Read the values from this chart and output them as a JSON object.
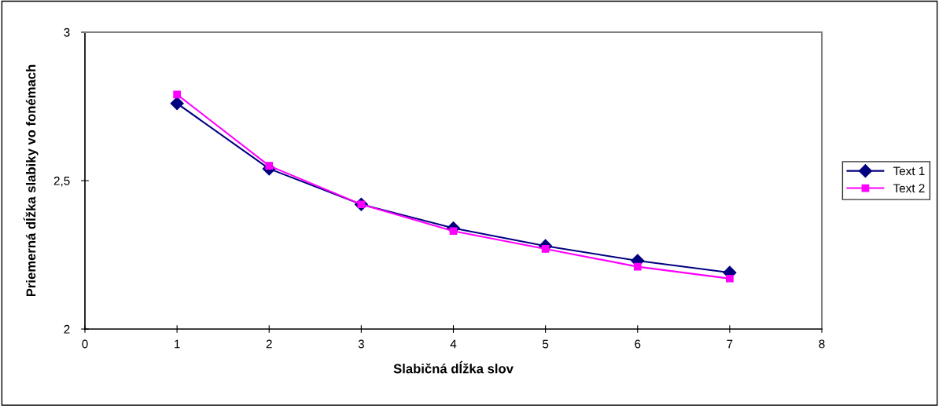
{
  "chart_data": {
    "type": "line",
    "xlabel": "Slabičná dĺžka slov",
    "ylabel": "Priemerná dĺžka slabiky vo fonémach",
    "x": [
      1,
      2,
      3,
      4,
      5,
      6,
      7
    ],
    "series": [
      {
        "name": "Text 1",
        "color": "#000080",
        "marker": "diamond",
        "values": [
          2.76,
          2.54,
          2.42,
          2.34,
          2.28,
          2.23,
          2.19
        ]
      },
      {
        "name": "Text 2",
        "color": "#ff00ff",
        "marker": "square",
        "values": [
          2.79,
          2.55,
          2.42,
          2.33,
          2.27,
          2.21,
          2.17
        ]
      }
    ],
    "xlim": [
      0,
      8
    ],
    "xticks": [
      0,
      1,
      2,
      3,
      4,
      5,
      6,
      7,
      8
    ],
    "ylim": [
      2,
      3
    ],
    "yticks": [
      2,
      {
        "value": 2.5,
        "label": "2,5"
      },
      3
    ],
    "grid": false,
    "legend": "right",
    "line_style": "solid"
  }
}
